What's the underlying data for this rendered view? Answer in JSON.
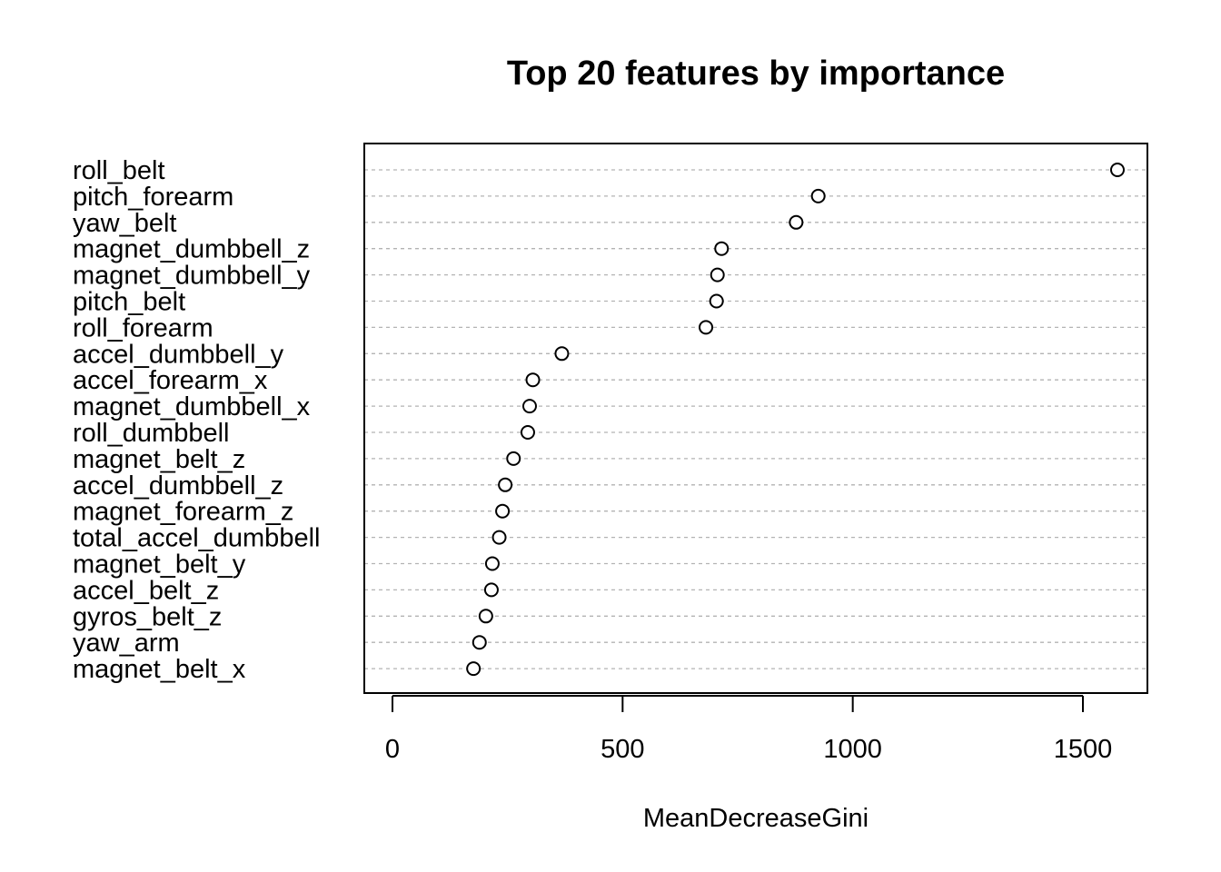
{
  "chart_data": {
    "type": "scatter",
    "title": "Top 20 features by importance",
    "xlabel": "MeanDecreaseGini",
    "ylabel": "",
    "xlim": [
      -100,
      1650
    ],
    "xticks": [
      0,
      500,
      1000,
      1500
    ],
    "grid": "horizontal dotted",
    "categories": [
      "roll_belt",
      "pitch_forearm",
      "yaw_belt",
      "magnet_dumbbell_z",
      "magnet_dumbbell_y",
      "pitch_belt",
      "roll_forearm",
      "accel_dumbbell_y",
      "accel_forearm_x",
      "magnet_dumbbell_x",
      "roll_dumbbell",
      "magnet_belt_z",
      "accel_dumbbell_z",
      "magnet_forearm_z",
      "total_accel_dumbbell",
      "magnet_belt_y",
      "accel_belt_z",
      "gyros_belt_z",
      "yaw_arm",
      "magnet_belt_x"
    ],
    "values": [
      1575,
      925,
      877,
      715,
      706,
      704,
      681,
      368,
      305,
      298,
      294,
      263,
      245,
      239,
      232,
      217,
      215,
      203,
      189,
      176
    ]
  }
}
